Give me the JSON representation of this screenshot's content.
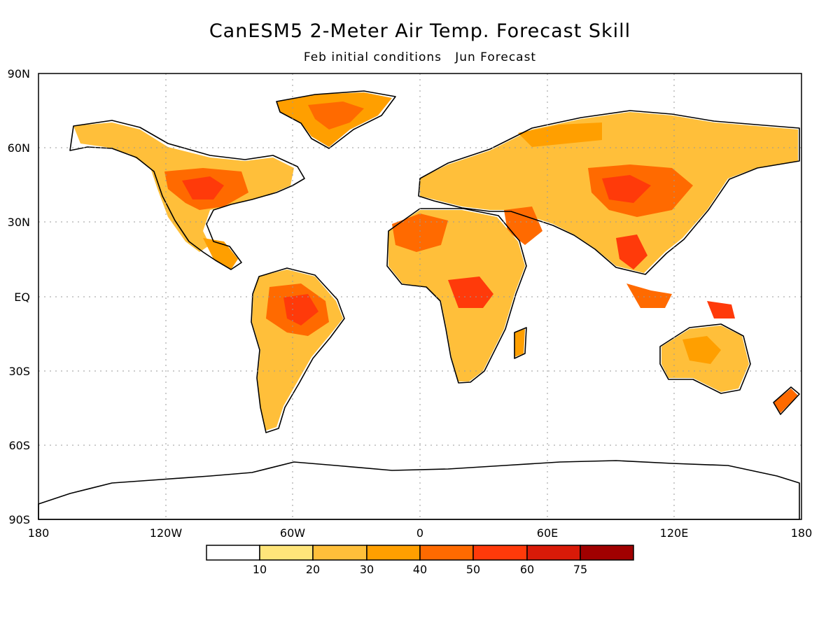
{
  "title": "CanESM5 2-Meter Air Temp. Forecast Skill",
  "subtitle": "Feb initial conditions   Jun Forecast",
  "lat_labels": [
    "90N",
    "60N",
    "30N",
    "EQ",
    "30S",
    "60S",
    "90S"
  ],
  "lon_labels": [
    "180",
    "120W",
    "60W",
    "0",
    "60E",
    "120E",
    "180"
  ],
  "colorbar": {
    "colors": [
      "#ffffff",
      "#ffe57a",
      "#ffbf3a",
      "#ff9f00",
      "#ff6a00",
      "#ff3a0a",
      "#d91a08",
      "#a00000"
    ],
    "labels": [
      "10",
      "20",
      "30",
      "40",
      "50",
      "60",
      "75"
    ]
  },
  "palette": {
    "background": "#ffffff",
    "coast": "#000000"
  }
}
